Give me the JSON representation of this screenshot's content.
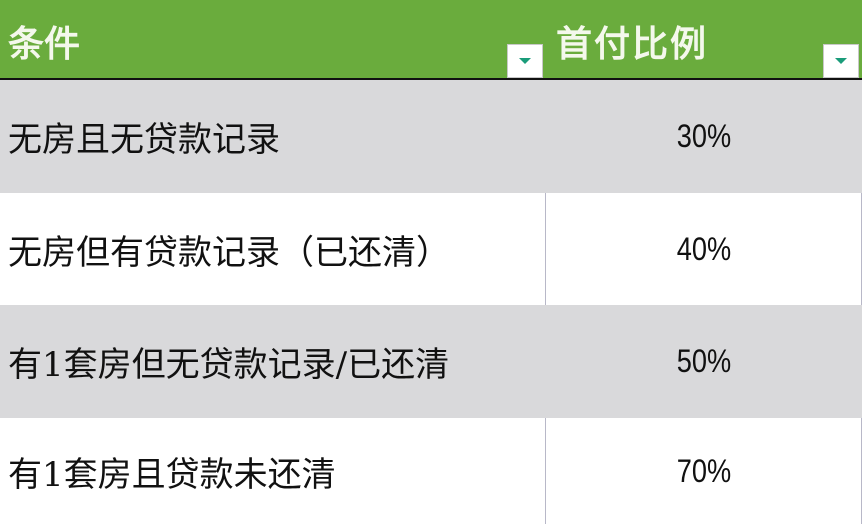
{
  "header": {
    "col1": "条件",
    "col2": "首付比例"
  },
  "rows": [
    {
      "condition": "无房且无贷款记录",
      "ratio": "30%"
    },
    {
      "condition": "无房但有贷款记录（已还清）",
      "ratio": "40%"
    },
    {
      "condition": "有1套房但无贷款记录/已还清",
      "ratio": "50%"
    },
    {
      "condition": "有1套房且贷款未还清",
      "ratio": "70%"
    }
  ],
  "colors": {
    "header": "#6aac3d",
    "band": "#d9d9db",
    "filter_arrow": "#1a9c7a"
  }
}
